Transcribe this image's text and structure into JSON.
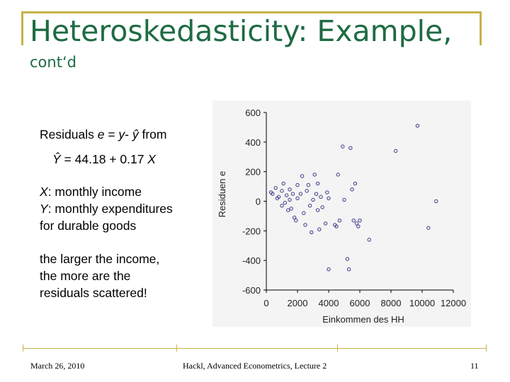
{
  "slide": {
    "title": "Heteroskedasticity: Example,",
    "subtitle": "cont‘d",
    "residuals_prefix": "Residuals ",
    "residuals_e": "e",
    "residuals_eq": " = ",
    "residuals_y": "y",
    "residuals_minus": "- ",
    "residuals_yhat": "ŷ",
    "residuals_from": " from",
    "fit_lhs": "Ŷ",
    "fit_rhs": " = 44.18 + 0.17 ",
    "fit_x": "X",
    "x_var": "X",
    "x_desc": ": monthly income",
    "y_var": "Y",
    "y_desc": ": monthly expenditures",
    "y_desc2": "for durable goods",
    "conclusion_lines": [
      "the larger the income,",
      "the more are the",
      "residuals scattered!"
    ]
  },
  "footer": {
    "date": "March 26, 2010",
    "course": "Hackl, Advanced Econometrics, Lecture 2",
    "page": "11"
  },
  "colors": {
    "title": "#1e6b43",
    "frame": "#c8b248",
    "points": "#3a3a8c"
  },
  "chart_data": {
    "type": "scatter",
    "xlabel": "Einkommen des HH",
    "ylabel": "Residuen e",
    "xlim": [
      0,
      12000
    ],
    "ylim": [
      -600,
      600
    ],
    "xticks": [
      "0",
      "2000",
      "4000",
      "6000",
      "8000",
      "10000",
      "12000"
    ],
    "yticks": [
      "600",
      "400",
      "200",
      "0",
      "-200",
      "-400",
      "-600"
    ],
    "points": [
      {
        "x": 300,
        "y": 60
      },
      {
        "x": 400,
        "y": 50
      },
      {
        "x": 600,
        "y": 90
      },
      {
        "x": 700,
        "y": 20
      },
      {
        "x": 800,
        "y": 30
      },
      {
        "x": 1000,
        "y": 70
      },
      {
        "x": 1000,
        "y": -30
      },
      {
        "x": 1100,
        "y": 120
      },
      {
        "x": 1200,
        "y": -10
      },
      {
        "x": 1300,
        "y": 40
      },
      {
        "x": 1400,
        "y": -60
      },
      {
        "x": 1500,
        "y": 80
      },
      {
        "x": 1500,
        "y": 10
      },
      {
        "x": 1600,
        "y": -50
      },
      {
        "x": 1700,
        "y": 50
      },
      {
        "x": 1800,
        "y": -110
      },
      {
        "x": 1900,
        "y": -130
      },
      {
        "x": 2000,
        "y": 20
      },
      {
        "x": 2000,
        "y": 110
      },
      {
        "x": 2200,
        "y": 50
      },
      {
        "x": 2300,
        "y": 170
      },
      {
        "x": 2400,
        "y": -80
      },
      {
        "x": 2500,
        "y": -160
      },
      {
        "x": 2600,
        "y": 70
      },
      {
        "x": 2700,
        "y": 110
      },
      {
        "x": 2800,
        "y": -30
      },
      {
        "x": 2900,
        "y": -210
      },
      {
        "x": 3000,
        "y": 10
      },
      {
        "x": 3100,
        "y": 180
      },
      {
        "x": 3200,
        "y": 50
      },
      {
        "x": 3300,
        "y": 120
      },
      {
        "x": 3300,
        "y": -60
      },
      {
        "x": 3400,
        "y": -190
      },
      {
        "x": 3500,
        "y": 30
      },
      {
        "x": 3600,
        "y": -40
      },
      {
        "x": 3800,
        "y": -150
      },
      {
        "x": 3900,
        "y": 60
      },
      {
        "x": 4000,
        "y": 20
      },
      {
        "x": 4000,
        "y": -460
      },
      {
        "x": 4400,
        "y": -160
      },
      {
        "x": 4500,
        "y": -170
      },
      {
        "x": 4600,
        "y": 180
      },
      {
        "x": 4700,
        "y": -130
      },
      {
        "x": 4900,
        "y": 370
      },
      {
        "x": 5000,
        "y": 10
      },
      {
        "x": 5200,
        "y": -390
      },
      {
        "x": 5300,
        "y": -460
      },
      {
        "x": 5400,
        "y": 360
      },
      {
        "x": 5500,
        "y": 80
      },
      {
        "x": 5600,
        "y": -130
      },
      {
        "x": 5700,
        "y": 120
      },
      {
        "x": 5800,
        "y": -150
      },
      {
        "x": 5900,
        "y": -170
      },
      {
        "x": 6000,
        "y": -130
      },
      {
        "x": 6600,
        "y": -260
      },
      {
        "x": 8300,
        "y": 340
      },
      {
        "x": 9700,
        "y": 510
      },
      {
        "x": 10400,
        "y": -180
      },
      {
        "x": 10900,
        "y": 0
      }
    ]
  }
}
